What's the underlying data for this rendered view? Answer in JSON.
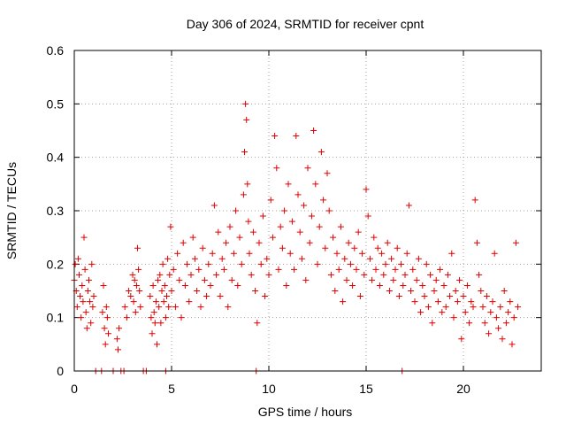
{
  "chart_data": {
    "type": "scatter",
    "title": "Day 306 of 2024, SRMTID for receiver cpnt",
    "xlabel": "GPS time / hours",
    "ylabel": "SRMTID / TECUs",
    "xlim": [
      0,
      24
    ],
    "ylim": [
      0,
      0.6
    ],
    "xticks": [
      0,
      5,
      10,
      15,
      20
    ],
    "xtick_labels": [
      "0",
      "5",
      "10",
      "15",
      "20"
    ],
    "yticks": [
      0,
      0.1,
      0.2,
      0.3,
      0.4,
      0.5,
      0.6
    ],
    "ytick_labels": [
      "0",
      "0.1",
      "0.2",
      "0.3",
      "0.4",
      "0.5",
      "0.6"
    ],
    "grid": true,
    "marker": "+",
    "color": "#e00000",
    "series": [
      {
        "name": "SRMTID",
        "x": [
          0.0,
          0.05,
          0.1,
          0.15,
          0.2,
          0.25,
          0.3,
          0.35,
          0.4,
          0.45,
          0.5,
          0.55,
          0.6,
          0.65,
          0.7,
          0.75,
          0.8,
          0.85,
          0.9,
          0.95,
          1.0,
          1.45,
          1.5,
          1.55,
          1.6,
          1.65,
          1.7,
          1.75,
          2.2,
          2.25,
          2.3,
          2.6,
          2.7,
          2.8,
          2.9,
          3.0,
          3.05,
          3.1,
          3.15,
          3.2,
          3.25,
          3.3,
          3.35,
          3.4,
          3.9,
          3.95,
          4.0,
          4.05,
          4.1,
          4.15,
          4.2,
          4.25,
          4.3,
          4.35,
          4.4,
          4.45,
          4.5,
          4.55,
          4.6,
          4.65,
          4.7,
          4.75,
          4.8,
          4.85,
          4.9,
          4.95,
          5.0,
          5.1,
          5.2,
          5.3,
          5.4,
          5.5,
          5.6,
          5.7,
          5.8,
          5.9,
          6.0,
          6.1,
          6.2,
          6.3,
          6.4,
          6.5,
          6.6,
          6.7,
          6.8,
          6.9,
          7.0,
          7.1,
          7.2,
          7.3,
          7.4,
          7.5,
          7.6,
          7.7,
          7.8,
          7.9,
          8.0,
          8.1,
          8.2,
          8.3,
          8.4,
          8.5,
          8.6,
          8.7,
          8.75,
          8.8,
          8.85,
          8.9,
          8.95,
          9.0,
          9.1,
          9.2,
          9.3,
          9.4,
          9.5,
          9.6,
          9.7,
          9.8,
          9.9,
          10.0,
          10.1,
          10.2,
          10.3,
          10.4,
          10.5,
          10.6,
          10.7,
          10.8,
          10.9,
          11.0,
          11.1,
          11.2,
          11.3,
          11.4,
          11.5,
          11.6,
          11.7,
          11.8,
          11.9,
          12.0,
          12.1,
          12.2,
          12.3,
          12.4,
          12.5,
          12.6,
          12.7,
          12.8,
          12.9,
          13.0,
          13.1,
          13.2,
          13.3,
          13.4,
          13.5,
          13.6,
          13.7,
          13.8,
          13.9,
          14.0,
          14.1,
          14.2,
          14.3,
          14.4,
          14.5,
          14.6,
          14.7,
          14.8,
          14.9,
          15.0,
          15.1,
          15.2,
          15.3,
          15.4,
          15.5,
          15.6,
          15.7,
          15.8,
          15.9,
          16.0,
          16.1,
          16.2,
          16.3,
          16.4,
          16.5,
          16.6,
          16.7,
          16.8,
          16.9,
          17.0,
          17.1,
          17.2,
          17.3,
          17.4,
          17.5,
          17.6,
          17.7,
          17.8,
          17.9,
          18.0,
          18.1,
          18.2,
          18.3,
          18.4,
          18.5,
          18.6,
          18.7,
          18.8,
          18.9,
          19.0,
          19.1,
          19.2,
          19.3,
          19.4,
          19.5,
          19.6,
          19.7,
          19.8,
          19.9,
          20.0,
          20.1,
          20.2,
          20.3,
          20.4,
          20.5,
          20.6,
          20.7,
          20.8,
          20.9,
          21.0,
          21.1,
          21.2,
          21.3,
          21.4,
          21.5,
          21.6,
          21.7,
          21.8,
          21.9,
          22.0,
          22.1,
          22.2,
          22.3,
          22.4,
          22.5,
          22.6,
          22.7,
          22.8,
          1.1,
          1.4,
          2.0,
          2.4,
          2.55,
          3.55,
          3.7,
          4.7,
          9.35,
          16.85
        ],
        "y": [
          0.17,
          0.2,
          0.15,
          0.12,
          0.21,
          0.18,
          0.14,
          0.1,
          0.16,
          0.13,
          0.25,
          0.19,
          0.11,
          0.08,
          0.15,
          0.17,
          0.13,
          0.09,
          0.2,
          0.12,
          0.14,
          0.11,
          0.16,
          0.08,
          0.05,
          0.12,
          0.1,
          0.07,
          0.06,
          0.04,
          0.08,
          0.12,
          0.1,
          0.15,
          0.14,
          0.18,
          0.13,
          0.17,
          0.11,
          0.16,
          0.23,
          0.19,
          0.15,
          0.12,
          0.14,
          0.1,
          0.07,
          0.16,
          0.11,
          0.09,
          0.13,
          0.05,
          0.17,
          0.12,
          0.18,
          0.09,
          0.15,
          0.2,
          0.13,
          0.16,
          0.1,
          0.14,
          0.21,
          0.12,
          0.18,
          0.27,
          0.15,
          0.19,
          0.12,
          0.22,
          0.17,
          0.1,
          0.24,
          0.16,
          0.2,
          0.13,
          0.18,
          0.25,
          0.21,
          0.15,
          0.19,
          0.12,
          0.23,
          0.17,
          0.14,
          0.2,
          0.16,
          0.22,
          0.31,
          0.18,
          0.26,
          0.14,
          0.21,
          0.19,
          0.24,
          0.12,
          0.27,
          0.17,
          0.22,
          0.3,
          0.16,
          0.25,
          0.2,
          0.33,
          0.41,
          0.5,
          0.47,
          0.35,
          0.28,
          0.22,
          0.18,
          0.26,
          0.15,
          0.09,
          0.24,
          0.2,
          0.29,
          0.14,
          0.21,
          0.18,
          0.32,
          0.25,
          0.44,
          0.38,
          0.19,
          0.27,
          0.23,
          0.3,
          0.16,
          0.35,
          0.22,
          0.28,
          0.19,
          0.44,
          0.33,
          0.26,
          0.21,
          0.31,
          0.17,
          0.38,
          0.24,
          0.29,
          0.45,
          0.35,
          0.2,
          0.27,
          0.41,
          0.32,
          0.23,
          0.37,
          0.3,
          0.18,
          0.25,
          0.15,
          0.22,
          0.19,
          0.27,
          0.13,
          0.21,
          0.17,
          0.24,
          0.2,
          0.16,
          0.23,
          0.19,
          0.26,
          0.14,
          0.22,
          0.18,
          0.34,
          0.29,
          0.21,
          0.17,
          0.25,
          0.19,
          0.23,
          0.16,
          0.22,
          0.18,
          0.2,
          0.24,
          0.15,
          0.21,
          0.17,
          0.19,
          0.23,
          0.14,
          0.2,
          0.16,
          0.18,
          0.22,
          0.31,
          0.15,
          0.19,
          0.13,
          0.17,
          0.21,
          0.11,
          0.16,
          0.14,
          0.2,
          0.12,
          0.18,
          0.09,
          0.15,
          0.17,
          0.13,
          0.19,
          0.11,
          0.16,
          0.12,
          0.18,
          0.14,
          0.22,
          0.1,
          0.15,
          0.13,
          0.17,
          0.06,
          0.14,
          0.11,
          0.16,
          0.09,
          0.13,
          0.12,
          0.32,
          0.24,
          0.18,
          0.15,
          0.12,
          0.09,
          0.14,
          0.07,
          0.11,
          0.13,
          0.22,
          0.1,
          0.08,
          0.12,
          0.06,
          0.15,
          0.09,
          0.11,
          0.13,
          0.05,
          0.1,
          0.24,
          0.12,
          0.0,
          0.0,
          0.0,
          0.0,
          0.0,
          0.0,
          0.0,
          0.0,
          0.0,
          0.0
        ]
      }
    ]
  }
}
